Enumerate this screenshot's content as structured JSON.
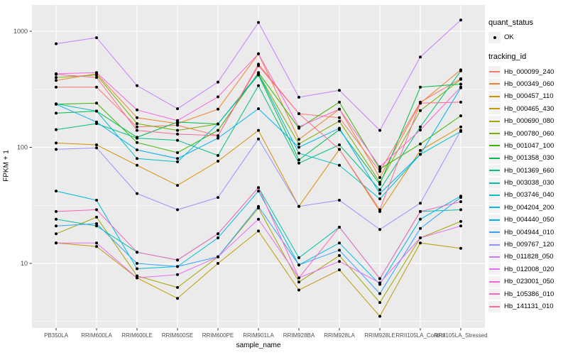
{
  "chart_data": {
    "type": "line",
    "title": "",
    "xlabel": "sample_name",
    "ylabel": "FPKM + 1",
    "y_scale": "log10",
    "y_ticks": [
      10,
      100,
      1000
    ],
    "y_tick_labels": [
      "10",
      "100",
      "1000"
    ],
    "y_minor_gridlines": [
      3.162,
      31.623,
      316.228
    ],
    "ylim": [
      2.8,
      1700
    ],
    "grid": "white major and minor gridlines on gray panel",
    "legend_position": "right",
    "point_marker": "small black point on every value",
    "categories": [
      "PB350LA",
      "RRIM600LA",
      "RRIM600LE",
      "RRIM600SE",
      "RRIM600PE",
      "RRIM901LA",
      "RRIM928BA",
      "RRIM928LA",
      "RRIM928LE",
      "RRII105LA_Control",
      "RRII105LA_Stressed"
    ],
    "series": [
      {
        "name": "Hb_000099_240",
        "color": "#F8766D",
        "values": [
          330,
          330,
          150,
          155,
          126,
          505,
          195,
          180,
          62,
          245,
          390
        ]
      },
      {
        "name": "Hb_000349_060",
        "color": "#EA8331",
        "values": [
          377,
          430,
          180,
          160,
          213,
          640,
          117,
          213,
          55,
          240,
          465
        ]
      },
      {
        "name": "Hb_000457_110",
        "color": "#D89000",
        "values": [
          109,
          105,
          70,
          47,
          76,
          140,
          31,
          96,
          28,
          94,
          150
        ]
      },
      {
        "name": "Hb_000465_430",
        "color": "#C09B00",
        "values": [
          15,
          14,
          7.5,
          5,
          10,
          19,
          5.9,
          8.8,
          3.5,
          15,
          13.5
        ]
      },
      {
        "name": "Hb_000690_080",
        "color": "#A3A500",
        "values": [
          18,
          25,
          7.8,
          6.2,
          11.4,
          30,
          6.9,
          11.7,
          4.6,
          16.6,
          23
        ]
      },
      {
        "name": "Hb_000780_060",
        "color": "#7CAE00",
        "values": [
          400,
          420,
          160,
          140,
          159,
          430,
          107,
          168,
          50,
          207,
          385
        ]
      },
      {
        "name": "Hb_001047_100",
        "color": "#39B600",
        "values": [
          235,
          240,
          110,
          90,
          140,
          440,
          146,
          245,
          65,
          107,
          187
        ]
      },
      {
        "name": "Hb_001358_030",
        "color": "#00BB4E",
        "values": [
          197,
          205,
          122,
          165,
          159,
          420,
          78,
          142,
          48,
          330,
          350
        ]
      },
      {
        "name": "Hb_001369_660",
        "color": "#00BF7D",
        "values": [
          142,
          160,
          120,
          115,
          85,
          340,
          73,
          105,
          43,
          150,
          455
        ]
      },
      {
        "name": "Hb_003038_030",
        "color": "#00C1A3",
        "values": [
          24,
          21,
          12.5,
          10.7,
          18,
          45,
          11.2,
          20.5,
          7.4,
          28,
          29
        ]
      },
      {
        "name": "Hb_003746_040",
        "color": "#00BFC4",
        "values": [
          237,
          205,
          80,
          75,
          159,
          430,
          89,
          70,
          36,
          87,
          137
        ]
      },
      {
        "name": "Hb_004204_200",
        "color": "#00BAE0",
        "values": [
          42,
          35,
          9,
          9.4,
          16.6,
          42,
          9.7,
          15,
          6.6,
          24,
          38
        ]
      },
      {
        "name": "Hb_004440_050",
        "color": "#00B0F6",
        "values": [
          235,
          165,
          95,
          80,
          120,
          215,
          100,
          146,
          40,
          87,
          325
        ]
      },
      {
        "name": "Hb_004944_010",
        "color": "#35A2FF",
        "values": [
          21,
          22,
          10,
          9.4,
          11.4,
          31,
          9.7,
          13,
          5.5,
          20,
          37
        ]
      },
      {
        "name": "Hb_009767_120",
        "color": "#9590FF",
        "values": [
          96,
          99,
          40,
          29,
          37,
          118,
          31,
          35,
          19.6,
          33,
          140
        ]
      },
      {
        "name": "Hb_011828_050",
        "color": "#C77CFF",
        "values": [
          780,
          880,
          340,
          215,
          365,
          1190,
          270,
          310,
          140,
          600,
          1250
        ]
      },
      {
        "name": "Hb_012008_020",
        "color": "#E76BF3",
        "values": [
          15,
          15,
          7.5,
          8,
          11.4,
          24,
          7.5,
          10.4,
          6.8,
          16.6,
          21
        ]
      },
      {
        "name": "Hb_023001_050",
        "color": "#FA62DB",
        "values": [
          430,
          440,
          210,
          170,
          272,
          640,
          150,
          213,
          68,
          141,
          330
        ]
      },
      {
        "name": "Hb_105386_010",
        "color": "#FF62BC",
        "values": [
          28,
          29,
          12.5,
          10.7,
          18,
          45,
          7.5,
          20.5,
          7.4,
          28,
          34
        ]
      },
      {
        "name": "Hb_141131_010",
        "color": "#FF6A98",
        "values": [
          425,
          400,
          140,
          130,
          126,
          520,
          195,
          96,
          29,
          240,
          245
        ]
      }
    ]
  },
  "legend": {
    "quant_status": {
      "title": "quant_status",
      "items": [
        {
          "label": "OK",
          "marker": "black-point-icon",
          "color": "#000000"
        }
      ]
    },
    "tracking_id": {
      "title": "tracking_id"
    }
  },
  "colors": {
    "panel_bg": "#EBEBEB",
    "gridline": "#FFFFFF",
    "tick_mark": "#333333",
    "tick_label": "#4D4D4D",
    "axis_title": "#000000",
    "point": "#000000",
    "legend_key_bg": "#F2F2F2"
  }
}
